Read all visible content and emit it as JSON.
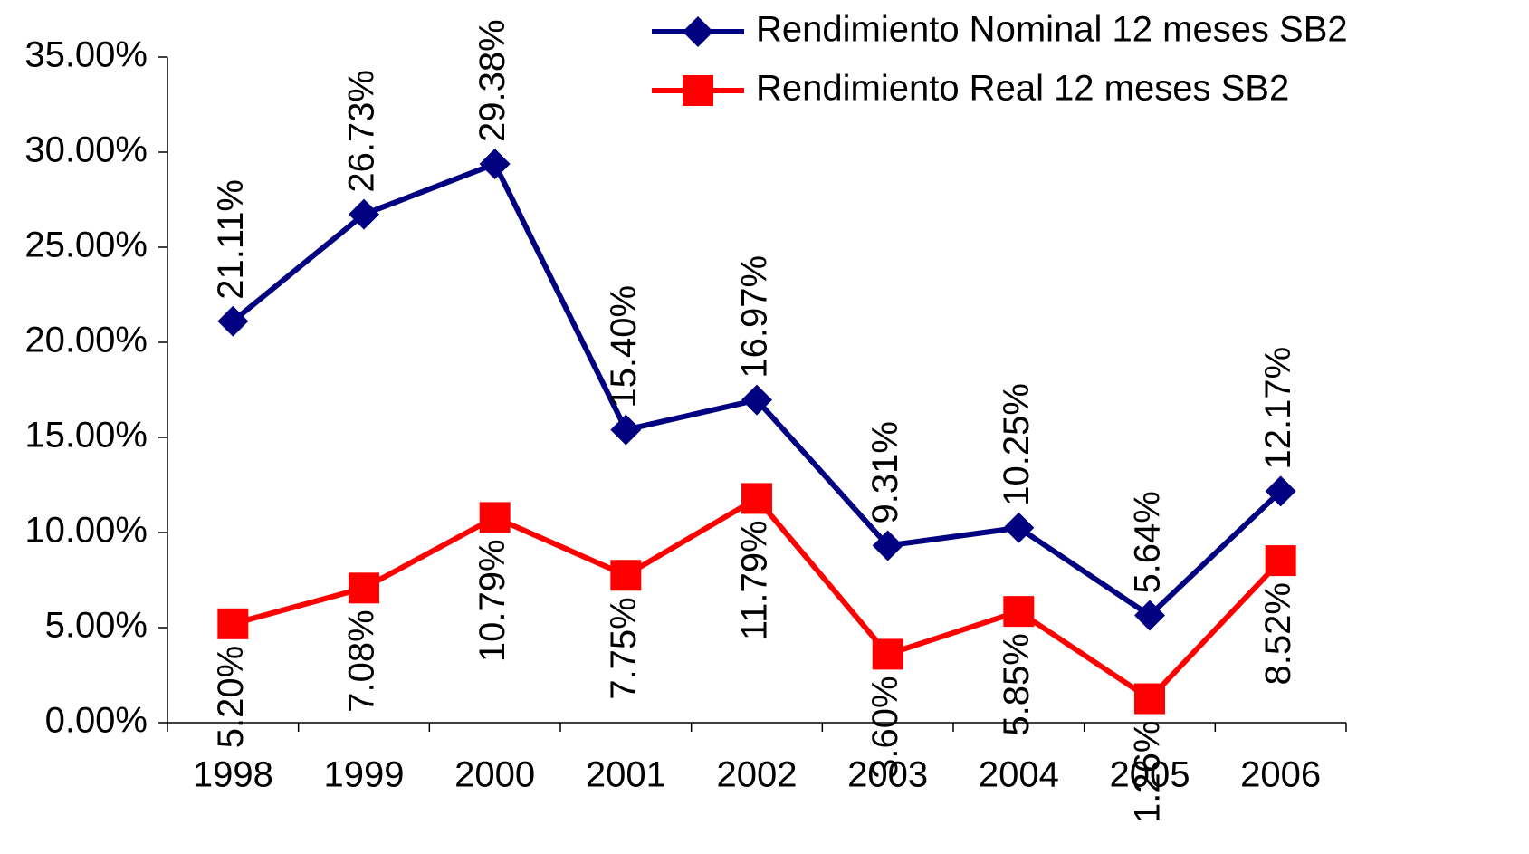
{
  "chart_data": {
    "type": "line",
    "categories": [
      "1998",
      "1999",
      "2000",
      "2001",
      "2002",
      "2003",
      "2004",
      "2005",
      "2006"
    ],
    "series": [
      {
        "name": "Rendimiento Nominal 12 meses SB2",
        "color": "#000080",
        "marker": "diamond",
        "values": [
          21.11,
          26.73,
          29.38,
          15.4,
          16.97,
          9.31,
          10.25,
          5.64,
          12.17
        ],
        "value_labels": [
          "21.11%",
          "26.73%",
          "29.38%",
          "15.40%",
          "16.97%",
          "9.31%",
          "10.25%",
          "5.64%",
          "12.17%"
        ]
      },
      {
        "name": "Rendimiento Real 12 meses SB2",
        "color": "#ff0000",
        "marker": "square",
        "values": [
          5.2,
          7.08,
          10.79,
          7.75,
          11.79,
          3.6,
          5.85,
          1.26,
          8.52
        ],
        "value_labels": [
          "5.20%",
          "7.08%",
          "10.79%",
          "7.75%",
          "11.79%",
          "3.60%",
          "5.85%",
          "1.26%",
          "8.52%"
        ]
      }
    ],
    "ylim": [
      0,
      35
    ],
    "yticks": [
      {
        "value": 0,
        "label": "0.00%"
      },
      {
        "value": 5,
        "label": "5.00%"
      },
      {
        "value": 10,
        "label": "10.00%"
      },
      {
        "value": 15,
        "label": "15.00%"
      },
      {
        "value": 20,
        "label": "20.00%"
      },
      {
        "value": 25,
        "label": "25.00%"
      },
      {
        "value": 30,
        "label": "30.00%"
      },
      {
        "value": 35,
        "label": "35.00%"
      }
    ],
    "grid": false,
    "legend": "top-right"
  }
}
